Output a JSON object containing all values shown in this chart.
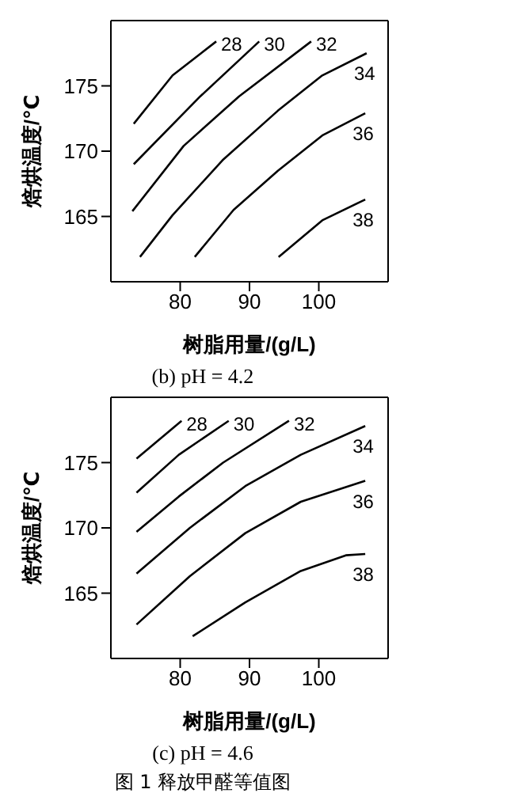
{
  "chart_data": [
    {
      "type": "line",
      "title": "(b) pH = 4.2",
      "xlabel": "树脂用量/(g/L)",
      "ylabel": "焙烘温度/℃",
      "xlim": [
        70,
        110
      ],
      "ylim": [
        160,
        180
      ],
      "xticks": [
        80,
        90,
        100
      ],
      "yticks": [
        165,
        170,
        175
      ],
      "marker": "none",
      "line_style": "solid",
      "series": [
        {
          "name": "28",
          "color": "#000000",
          "x": [
            73.3,
            78.9,
            85.2
          ],
          "values": [
            172.1,
            175.8,
            178.4
          ]
        },
        {
          "name": "30",
          "color": "#000000",
          "x": [
            73.3,
            82.9,
            91.4
          ],
          "values": [
            169.0,
            174.2,
            178.4
          ]
        },
        {
          "name": "32",
          "color": "#000000",
          "x": [
            73.1,
            80.5,
            88.5,
            98.9
          ],
          "values": [
            165.4,
            170.4,
            174.2,
            178.4
          ]
        },
        {
          "name": "34",
          "color": "#000000",
          "x": [
            74.2,
            78.9,
            86.1,
            94.1,
            100.5,
            106.9
          ],
          "values": [
            161.9,
            165.1,
            169.3,
            173.1,
            175.8,
            177.5
          ]
        },
        {
          "name": "36",
          "color": "#000000",
          "x": [
            82.1,
            87.7,
            94.1,
            100.5,
            106.7
          ],
          "values": [
            161.9,
            165.5,
            168.5,
            171.2,
            172.9
          ]
        },
        {
          "name": "38",
          "color": "#000000",
          "x": [
            94.2,
            100.5,
            106.7
          ],
          "values": [
            161.9,
            164.7,
            166.3
          ]
        }
      ]
    },
    {
      "type": "line",
      "title": "(c) pH = 4.6",
      "xlabel": "树脂用量/(g/L)",
      "ylabel": "焙烘温度/℃",
      "xlim": [
        70,
        110
      ],
      "ylim": [
        160,
        180
      ],
      "xticks": [
        80,
        90,
        100
      ],
      "yticks": [
        165,
        170,
        175
      ],
      "marker": "none",
      "line_style": "solid",
      "annotations": [
        "图 1  释放甲醛等值图"
      ],
      "series": [
        {
          "name": "28",
          "color": "#000000",
          "x": [
            73.7,
            80.2
          ],
          "values": [
            175.3,
            178.2
          ]
        },
        {
          "name": "30",
          "color": "#000000",
          "x": [
            73.7,
            79.8,
            87.0
          ],
          "values": [
            172.7,
            175.6,
            178.2
          ]
        },
        {
          "name": "32",
          "color": "#000000",
          "x": [
            73.7,
            79.8,
            86.2,
            95.7
          ],
          "values": [
            169.7,
            172.4,
            175.0,
            178.2
          ]
        },
        {
          "name": "34",
          "color": "#000000",
          "x": [
            73.7,
            81.4,
            89.4,
            97.4,
            106.7
          ],
          "values": [
            166.5,
            170.0,
            173.2,
            175.6,
            177.8
          ]
        },
        {
          "name": "36",
          "color": "#000000",
          "x": [
            73.7,
            81.4,
            89.4,
            97.4,
            106.7
          ],
          "values": [
            162.6,
            166.3,
            169.6,
            172.0,
            173.6
          ]
        },
        {
          "name": "38",
          "color": "#000000",
          "x": [
            81.8,
            89.4,
            97.4,
            103.9,
            106.7
          ],
          "values": [
            161.7,
            164.3,
            166.7,
            167.9,
            168.0
          ]
        }
      ]
    }
  ]
}
